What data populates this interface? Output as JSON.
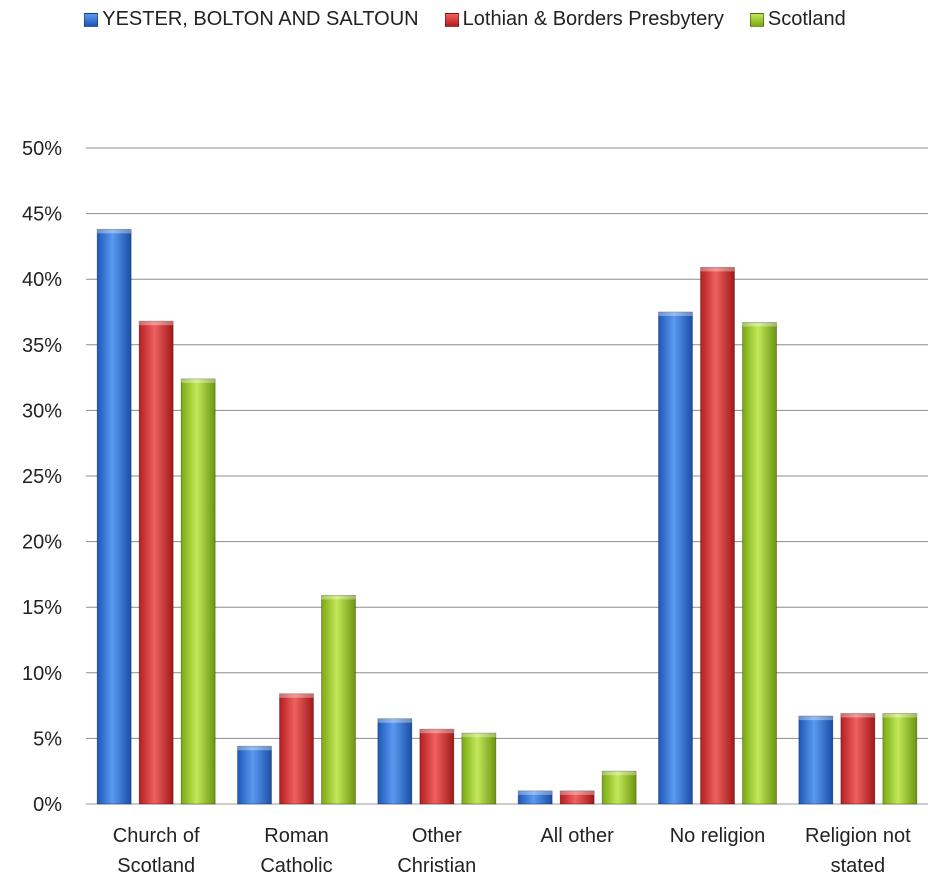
{
  "chart_data": {
    "type": "bar",
    "categories": [
      [
        "Church of",
        "Scotland"
      ],
      [
        "Roman",
        "Catholic"
      ],
      [
        "Other",
        "Christian"
      ],
      [
        "All other"
      ],
      [
        "No religion"
      ],
      [
        "Religion not",
        "stated"
      ]
    ],
    "series": [
      {
        "name": "YESTER, BOLTON AND SALTOUN",
        "color": "#2e6fd6",
        "values": [
          43.8,
          4.4,
          6.5,
          1.0,
          37.5,
          6.7
        ]
      },
      {
        "name": "Lothian & Borders Presbytery",
        "color": "#d92b2b",
        "values": [
          36.8,
          8.4,
          5.7,
          1.0,
          40.9,
          6.9
        ]
      },
      {
        "name": "Scotland",
        "color": "#9bc91a",
        "values": [
          32.4,
          15.9,
          5.4,
          2.5,
          36.7,
          6.9
        ]
      }
    ],
    "yticks": [
      "0%",
      "5%",
      "10%",
      "15%",
      "20%",
      "25%",
      "30%",
      "35%",
      "40%",
      "45%",
      "50%"
    ],
    "ylim": [
      0,
      50
    ],
    "grid": true,
    "legend_position": "top"
  }
}
